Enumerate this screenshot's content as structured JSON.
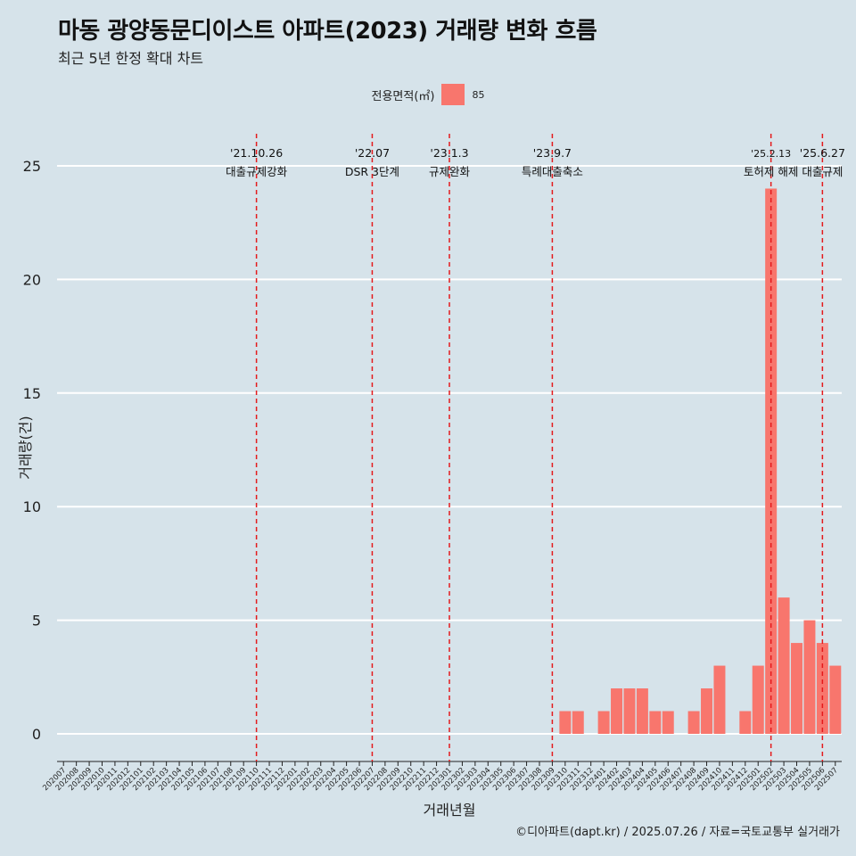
{
  "title": "마동 광양동문디이스트 아파트(2023) 거래량 변화 흐름",
  "subtitle": "최근 5년 한정 확대 차트",
  "legend": {
    "title": "전용면적(㎡)",
    "label": "85",
    "color": "#f8766d"
  },
  "caption": "©디아파트(dapt.kr) / 2025.07.26 / 자료=국토교통부 실거래가",
  "colors": {
    "background": "#d6e3ea",
    "bar": "#f8766d",
    "event_line": "#e41a1c",
    "grid": "#ffffff"
  },
  "chart_data": {
    "type": "bar",
    "xlabel": "거래년월",
    "ylabel": "거래량(건)",
    "ylim": [
      0,
      25
    ],
    "yticks": [
      0,
      5,
      10,
      15,
      20,
      25
    ],
    "grid": true,
    "legend_position": "top",
    "categories": [
      "202007",
      "202008",
      "202009",
      "202010",
      "202011",
      "202012",
      "202101",
      "202102",
      "202103",
      "202104",
      "202105",
      "202106",
      "202107",
      "202108",
      "202109",
      "202110",
      "202111",
      "202112",
      "202201",
      "202202",
      "202203",
      "202204",
      "202205",
      "202206",
      "202207",
      "202208",
      "202209",
      "202210",
      "202211",
      "202212",
      "202301",
      "202302",
      "202303",
      "202304",
      "202305",
      "202306",
      "202307",
      "202308",
      "202309",
      "202310",
      "202311",
      "202312",
      "202401",
      "202402",
      "202403",
      "202404",
      "202405",
      "202406",
      "202407",
      "202408",
      "202409",
      "202410",
      "202411",
      "202412",
      "202501",
      "202502",
      "202503",
      "202504",
      "202505",
      "202506",
      "202507"
    ],
    "series": [
      {
        "name": "85",
        "values": [
          0,
          0,
          0,
          0,
          0,
          0,
          0,
          0,
          0,
          0,
          0,
          0,
          0,
          0,
          0,
          0,
          0,
          0,
          0,
          0,
          0,
          0,
          0,
          0,
          0,
          0,
          0,
          0,
          0,
          0,
          0,
          0,
          0,
          0,
          0,
          0,
          0,
          0,
          0,
          1,
          1,
          0,
          1,
          2,
          2,
          2,
          1,
          1,
          0,
          1,
          2,
          3,
          0,
          1,
          3,
          24,
          6,
          4,
          5,
          4,
          3
        ]
      }
    ],
    "annotations": [
      {
        "category": "202110",
        "date": "'21.10.26",
        "label": "대출규제강화"
      },
      {
        "category": "202207",
        "date": "'22.07",
        "label": "DSR 3단계"
      },
      {
        "category": "202301",
        "date": "'23.1.3",
        "label": "규제완화"
      },
      {
        "category": "202309",
        "date": "'23.9.7",
        "label": "특례대출축소"
      },
      {
        "category": "202502",
        "date": "'25.2.13",
        "label": "토허제 해제"
      },
      {
        "category": "202506",
        "date": "'25.6.27",
        "label": "대출규제"
      }
    ]
  }
}
